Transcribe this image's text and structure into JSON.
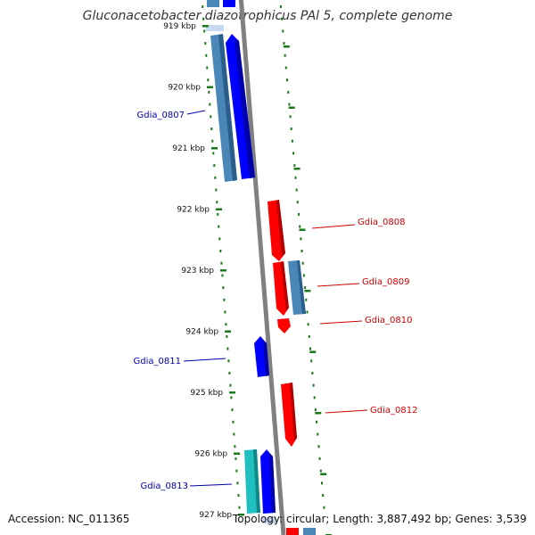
{
  "title": "Gluconacetobacter diazotrophicus PAl 5, complete genome",
  "accession": "Accession: NC_011365",
  "topology": "Topology: circular; Length: 3,887,492 bp; Genes: 3,539",
  "colors": {
    "forward_cds": "#ff0000",
    "reverse_cds": "#0000ff",
    "gene_blue": "#4a86b8",
    "gene_cyan": "#20c0c0",
    "backbone": "#808080",
    "ticks": "#1a7a1a",
    "label_forward": "#cc0000",
    "label_reverse": "#0000aa"
  },
  "ruler": [
    {
      "label": "919 kbp",
      "kbp": 919
    },
    {
      "label": "920 kbp",
      "kbp": 920
    },
    {
      "label": "921 kbp",
      "kbp": 921
    },
    {
      "label": "922 kbp",
      "kbp": 922
    },
    {
      "label": "923 kbp",
      "kbp": 923
    },
    {
      "label": "924 kbp",
      "kbp": 924
    },
    {
      "label": "925 kbp",
      "kbp": 925
    },
    {
      "label": "926 kbp",
      "kbp": 926
    },
    {
      "label": "927 kbp",
      "kbp": 927
    }
  ],
  "genes": [
    {
      "id": "Gdia_0807",
      "label": "Gdia_0807",
      "strand": "reverse"
    },
    {
      "id": "Gdia_0808",
      "label": "Gdia_0808",
      "strand": "forward"
    },
    {
      "id": "Gdia_0809",
      "label": "Gdia_0809",
      "strand": "forward"
    },
    {
      "id": "Gdia_0810",
      "label": "Gdia_0810",
      "strand": "forward"
    },
    {
      "id": "Gdia_0811",
      "label": "Gdia_0811",
      "strand": "reverse"
    },
    {
      "id": "Gdia_0812",
      "label": "Gdia_0812",
      "strand": "forward"
    },
    {
      "id": "Gdia_0813",
      "label": "Gdia_0813",
      "strand": "reverse"
    }
  ]
}
